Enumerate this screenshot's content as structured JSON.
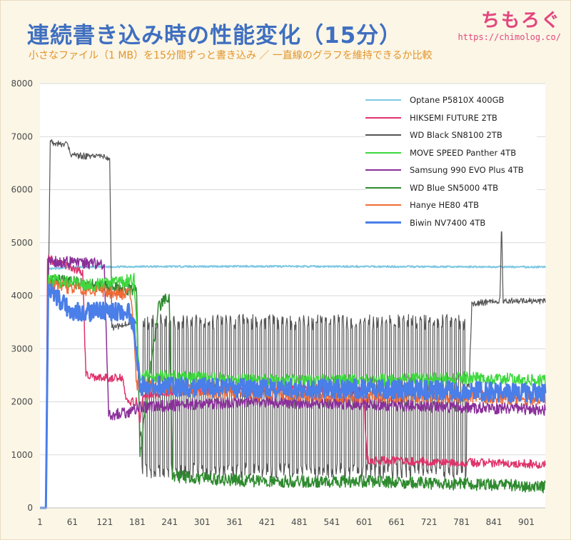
{
  "header": {
    "title": "連続書き込み時の性能変化（15分）",
    "subtitle": "小さなファイル（1 MB）を15分間ずっと書き込み ／ 一直線のグラフを維持できるか比較",
    "logo_text": "ちもろぐ",
    "logo_url": "https://chimolog.co/"
  },
  "chart_data": {
    "type": "line",
    "title": "連続書き込み時の性能変化（15分）",
    "xlim": [
      1,
      936
    ],
    "ylim": [
      0,
      8000
    ],
    "x_ticks": [
      "1",
      "61",
      "121",
      "181",
      "241",
      "301",
      "361",
      "421",
      "481",
      "541",
      "601",
      "661",
      "721",
      "781",
      "841",
      "901"
    ],
    "x_tick_values": [
      1,
      61,
      121,
      181,
      241,
      301,
      361,
      421,
      481,
      541,
      601,
      661,
      721,
      781,
      841,
      901
    ],
    "y_ticks": [
      "0",
      "1000",
      "2000",
      "3000",
      "4000",
      "5000",
      "6000",
      "7000",
      "8000"
    ],
    "y_tick_values": [
      0,
      1000,
      2000,
      3000,
      4000,
      5000,
      6000,
      7000,
      8000
    ],
    "grid": true,
    "legend_position": "top-right",
    "series": [
      {
        "name": "Optane P5810X 400GB",
        "color": "#7ec8e3",
        "width": 2,
        "points": [
          [
            1,
            0
          ],
          [
            12,
            0
          ],
          [
            16,
            4500
          ],
          [
            60,
            4540
          ],
          [
            200,
            4550
          ],
          [
            400,
            4555
          ],
          [
            600,
            4550
          ],
          [
            800,
            4545
          ],
          [
            936,
            4540
          ]
        ],
        "noise": 15,
        "osc": 0
      },
      {
        "name": "HIKSEMI FUTURE 2TB",
        "color": "#e0336b",
        "width": 1.5,
        "points": [
          [
            1,
            0
          ],
          [
            12,
            0
          ],
          [
            15,
            4700
          ],
          [
            80,
            4450
          ],
          [
            86,
            2500
          ],
          [
            100,
            2450
          ],
          [
            155,
            2450
          ],
          [
            160,
            2000
          ],
          [
            180,
            2000
          ],
          [
            186,
            1600
          ],
          [
            192,
            2100
          ],
          [
            250,
            2200
          ],
          [
            400,
            2250
          ],
          [
            550,
            2250
          ],
          [
            600,
            2200
          ],
          [
            606,
            900
          ],
          [
            700,
            880
          ],
          [
            936,
            820
          ]
        ],
        "noise": 80,
        "osc": 0
      },
      {
        "name": "WD Black SN8100 2TB",
        "color": "#555555",
        "width": 1.2,
        "points": [
          [
            1,
            0
          ],
          [
            12,
            0
          ],
          [
            20,
            6900
          ],
          [
            50,
            6850
          ],
          [
            60,
            6650
          ],
          [
            130,
            6600
          ],
          [
            134,
            3400
          ],
          [
            180,
            3500
          ],
          [
            186,
            1400
          ],
          [
            196,
            1300
          ],
          [
            200,
            2300
          ],
          [
            795,
            2300
          ],
          [
            800,
            3850
          ],
          [
            852,
            3900
          ],
          [
            855,
            5400
          ],
          [
            858,
            3900
          ],
          [
            936,
            3900
          ]
        ],
        "noise": 60,
        "osc": 1,
        "osc_range": [
          190,
          790
        ],
        "osc_low": 700,
        "osc_high": 3500,
        "osc_period": 8
      },
      {
        "name": "MOVE SPEED Panther 4TB",
        "color": "#3ed83e",
        "width": 1.5,
        "points": [
          [
            1,
            0
          ],
          [
            12,
            0
          ],
          [
            16,
            4300
          ],
          [
            100,
            4200
          ],
          [
            175,
            4300
          ],
          [
            185,
            2500
          ],
          [
            400,
            2400
          ],
          [
            600,
            2400
          ],
          [
            800,
            2450
          ],
          [
            936,
            2400
          ]
        ],
        "noise": 120,
        "osc": 0
      },
      {
        "name": "Samsung 990 EVO Plus 4TB",
        "color": "#8a2f9a",
        "width": 1.5,
        "points": [
          [
            1,
            0
          ],
          [
            12,
            0
          ],
          [
            16,
            4650
          ],
          [
            120,
            4600
          ],
          [
            128,
            1750
          ],
          [
            170,
            1800
          ],
          [
            186,
            1900
          ],
          [
            400,
            2000
          ],
          [
            600,
            1950
          ],
          [
            936,
            1850
          ]
        ],
        "noise": 110,
        "osc": 0
      },
      {
        "name": "WD Blue SN5000 4TB",
        "color": "#2e8a2e",
        "width": 1.5,
        "points": [
          [
            1,
            0
          ],
          [
            12,
            0
          ],
          [
            16,
            4300
          ],
          [
            100,
            4200
          ],
          [
            180,
            4100
          ],
          [
            186,
            1000
          ],
          [
            220,
            3800
          ],
          [
            240,
            4000
          ],
          [
            246,
            600
          ],
          [
            400,
            500
          ],
          [
            600,
            500
          ],
          [
            800,
            450
          ],
          [
            936,
            400
          ]
        ],
        "noise": 120,
        "osc": 0
      },
      {
        "name": "Hanye HE80 4TB",
        "color": "#f06a36",
        "width": 1.5,
        "points": [
          [
            1,
            0
          ],
          [
            12,
            0
          ],
          [
            16,
            4200
          ],
          [
            120,
            4100
          ],
          [
            170,
            4000
          ],
          [
            180,
            2300
          ],
          [
            400,
            2150
          ],
          [
            600,
            2100
          ],
          [
            800,
            2100
          ],
          [
            936,
            2050
          ]
        ],
        "noise": 130,
        "osc": 0
      },
      {
        "name": "Biwin NV7400 4TB",
        "color": "#4a7ee8",
        "width": 3,
        "points": [
          [
            1,
            0
          ],
          [
            12,
            0
          ],
          [
            16,
            4100
          ],
          [
            60,
            3700
          ],
          [
            120,
            3700
          ],
          [
            165,
            3700
          ],
          [
            175,
            3400
          ],
          [
            186,
            2300
          ],
          [
            400,
            2250
          ],
          [
            600,
            2250
          ],
          [
            800,
            2200
          ],
          [
            936,
            2150
          ]
        ],
        "noise": 180,
        "osc": 0
      }
    ]
  }
}
